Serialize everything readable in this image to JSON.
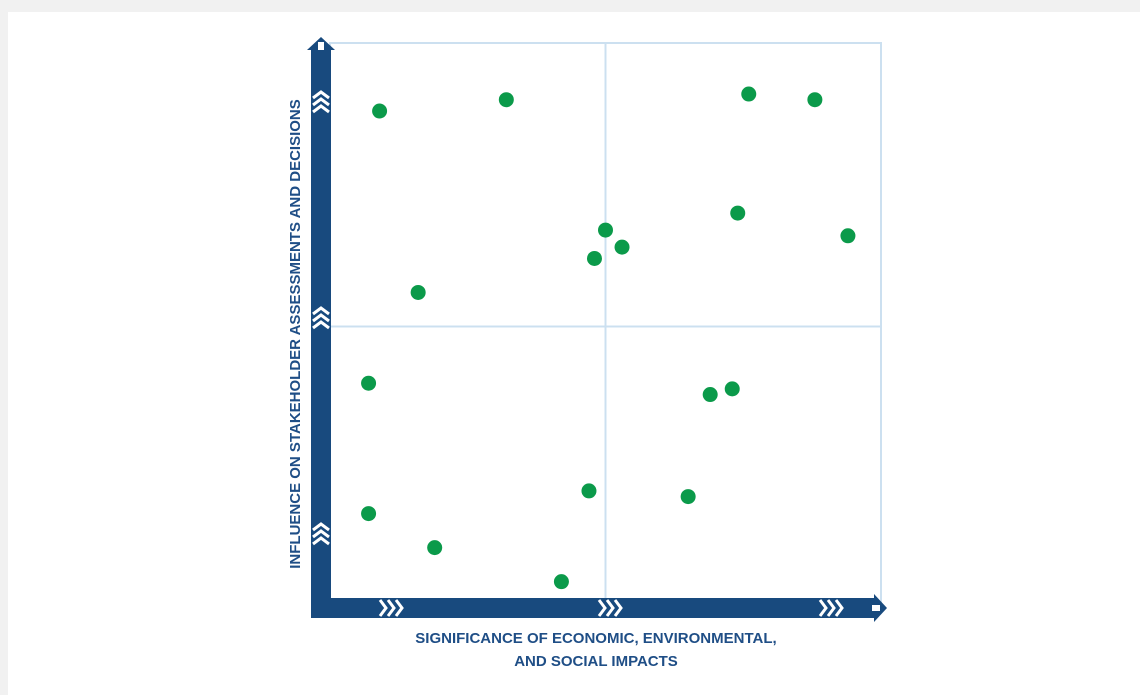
{
  "chart_data": {
    "type": "scatter",
    "title": "",
    "xlabel_lines": [
      "SIGNIFICANCE OF ECONOMIC, ENVIRONMENTAL,",
      "AND SOCIAL IMPACTS"
    ],
    "ylabel": "INFLUENCE ON STAKEHOLDER ASSESSMENTS AND DECISIONS",
    "xlim": [
      0,
      1
    ],
    "ylim": [
      0,
      1
    ],
    "quadrant_divider": {
      "x": 0.5,
      "y": 0.5
    },
    "grid": false,
    "legend": "none",
    "series": [
      {
        "points": [
          {
            "x": 0.09,
            "y": 0.88
          },
          {
            "x": 0.32,
            "y": 0.9
          },
          {
            "x": 0.76,
            "y": 0.91
          },
          {
            "x": 0.88,
            "y": 0.9
          },
          {
            "x": 0.74,
            "y": 0.7
          },
          {
            "x": 0.94,
            "y": 0.66
          },
          {
            "x": 0.5,
            "y": 0.67
          },
          {
            "x": 0.53,
            "y": 0.64
          },
          {
            "x": 0.48,
            "y": 0.62
          },
          {
            "x": 0.16,
            "y": 0.56
          },
          {
            "x": 0.07,
            "y": 0.4
          },
          {
            "x": 0.69,
            "y": 0.38
          },
          {
            "x": 0.73,
            "y": 0.39
          },
          {
            "x": 0.47,
            "y": 0.21
          },
          {
            "x": 0.65,
            "y": 0.2
          },
          {
            "x": 0.07,
            "y": 0.17
          },
          {
            "x": 0.19,
            "y": 0.11
          },
          {
            "x": 0.42,
            "y": 0.05
          }
        ]
      }
    ]
  },
  "colors": {
    "axis": "#184a7e",
    "point": "#0b9a4a",
    "gridline": "#cce0f0",
    "label": "#1f4e86"
  }
}
